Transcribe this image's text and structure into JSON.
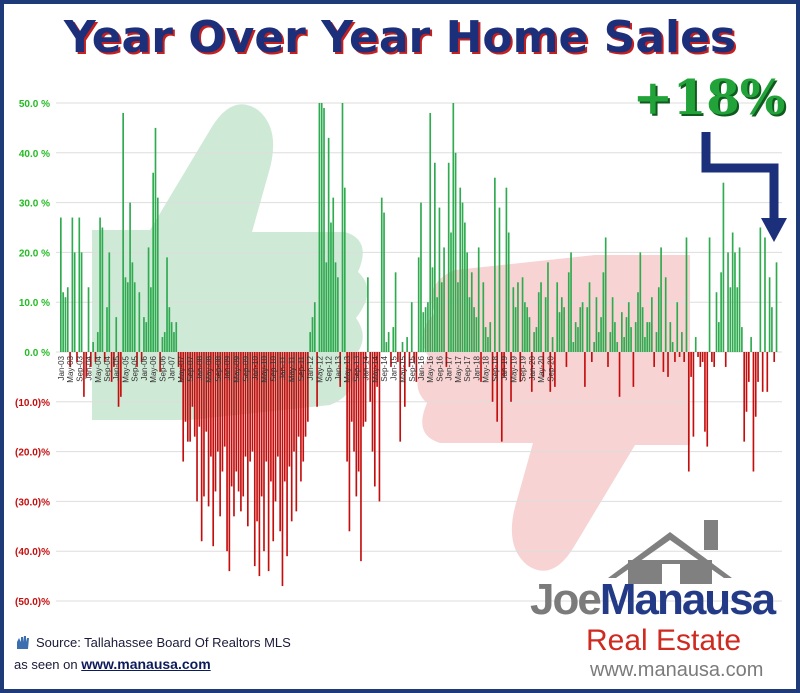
{
  "title": "Year Over Year Home Sales",
  "callout": "+18%",
  "source": "Source: Tallahassee Board Of Realtors MLS",
  "seen_on_prefix": "as seen on",
  "site": "www.manausa.com",
  "logo": {
    "joe": "Joe",
    "manausa": "Manausa",
    "real_estate": "Real Estate",
    "url": "www.manausa.com"
  },
  "colors": {
    "positive": "#2eaa4f",
    "negative": "#c40e0e",
    "positive_tick": "#22bb22",
    "negative_tick": "#c40e0e",
    "title": "#1c2f7a",
    "arrow": "#1c2f7a"
  },
  "chart_data": {
    "type": "bar",
    "title": "Year Over Year Home Sales",
    "x_start": "Jan-03",
    "x_end": "Dec-20",
    "x_ticks": [
      "Jan-03",
      "May-03",
      "Sep-03",
      "Jan-04",
      "May-04",
      "Sep-04",
      "Jan-05",
      "May-05",
      "Sep-05",
      "Jan-06",
      "May-06",
      "Sep-06",
      "Jan-07",
      "May-07",
      "Sep-07",
      "Jan-08",
      "May-08",
      "Sep-08",
      "Jan-09",
      "May-09",
      "Sep-09",
      "Jan-10",
      "May-10",
      "Sep-10",
      "Jan-11",
      "May-11",
      "Sep-11",
      "Jan-12",
      "May-12",
      "Sep-12",
      "Jan-13",
      "May-13",
      "Sep-13",
      "Jan-14",
      "May-14",
      "Sep-14",
      "Jan-15",
      "May-15",
      "Sep-15",
      "Jan-16",
      "May-16",
      "Sep-16",
      "Jan-17",
      "May-17",
      "Sep-17",
      "Jan-18",
      "May-18",
      "Sep-18",
      "Jan-19",
      "May-19",
      "Sep-19",
      "Jan-20",
      "May-20",
      "Sep-20"
    ],
    "y_ticks": [
      "50.0 %",
      "40.0 %",
      "30.0 %",
      "20.0 %",
      "10.0 %",
      "0.0 %",
      "(10.0)%",
      "(20.0)%",
      "(30.0)%",
      "(40.0)%",
      "(50.0)%"
    ],
    "ylim": [
      -50,
      50
    ],
    "grid": true,
    "values": [
      27,
      12,
      11,
      13,
      -3,
      27,
      20,
      -2,
      27,
      20,
      -9,
      -5,
      13,
      -3,
      2,
      -2,
      4,
      27,
      25,
      -2,
      9,
      20,
      -6,
      -3,
      7,
      -11,
      -9,
      48,
      15,
      14,
      30,
      18,
      14,
      -3,
      12,
      -2,
      7,
      6,
      21,
      13,
      36,
      45,
      31,
      -4,
      3,
      4,
      19,
      9,
      6,
      4,
      6,
      -3,
      -6,
      -22,
      -14,
      -18,
      -18,
      -11,
      -17,
      -30,
      -15,
      -38,
      -29,
      -16,
      -31,
      -21,
      -39,
      -28,
      -20,
      -33,
      -24,
      -19,
      -40,
      -44,
      -27,
      -33,
      -24,
      -28,
      -32,
      -29,
      -21,
      -35,
      -22,
      -20,
      -43,
      -34,
      -45,
      -29,
      -40,
      -22,
      -44,
      -26,
      -38,
      -30,
      -21,
      -36,
      -47,
      -26,
      -41,
      -23,
      -34,
      -20,
      -32,
      -17,
      -26,
      -22,
      -17,
      -14,
      4,
      7,
      10,
      -11,
      50,
      50,
      49,
      18,
      43,
      26,
      31,
      18,
      15,
      -7,
      50,
      33,
      -22,
      -36,
      -14,
      -20,
      -29,
      -24,
      -42,
      -15,
      -14,
      15,
      -10,
      -20,
      -27,
      -7,
      -30,
      31,
      28,
      2,
      4,
      -3,
      5,
      16,
      -2,
      -18,
      2,
      -11,
      3,
      -3,
      10,
      -2,
      -6,
      19,
      30,
      8,
      9,
      10,
      48,
      17,
      38,
      11,
      29,
      14,
      21,
      -3,
      38,
      24,
      50,
      40,
      14,
      33,
      30,
      26,
      20,
      11,
      16,
      9,
      7,
      21,
      -6,
      14,
      5,
      3,
      6,
      -10,
      35,
      -14,
      29,
      -18,
      -5,
      33,
      24,
      -10,
      13,
      9,
      14,
      -6,
      15,
      10,
      9,
      7,
      -8,
      4,
      5,
      12,
      14,
      -5,
      11,
      18,
      -8,
      3,
      -7,
      14,
      8,
      11,
      9,
      -3,
      16,
      20,
      2,
      6,
      5,
      9,
      10,
      -7,
      9,
      14,
      -2,
      2,
      11,
      4,
      7,
      16,
      23,
      -3,
      4,
      11,
      6,
      2,
      -9,
      8,
      3,
      7,
      10,
      5,
      -7,
      6,
      12,
      20,
      9,
      3,
      6,
      6,
      11,
      -3,
      4,
      13,
      21,
      -4,
      15,
      -5,
      6,
      2,
      -2,
      10,
      -1,
      4,
      -2,
      23,
      -24,
      -5,
      -17,
      3,
      -1,
      -3,
      -2,
      -16,
      -19,
      23,
      -2,
      -3,
      12,
      6,
      16,
      34,
      -3,
      20,
      13,
      24,
      20,
      13,
      21,
      5,
      -18,
      -12,
      -6,
      3,
      -24,
      -13,
      -6,
      25,
      -8,
      23,
      -8,
      15,
      9,
      -2,
      18
    ]
  }
}
